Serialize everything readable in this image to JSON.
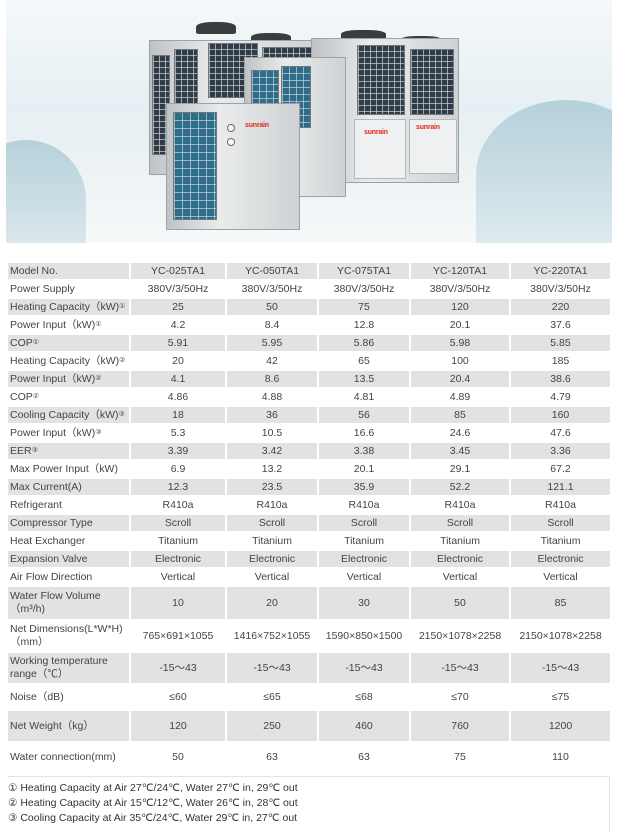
{
  "hero": {
    "brand_logo": "sunrain"
  },
  "table": {
    "header": [
      "Model No.",
      "YC-025TA1",
      "YC-050TA1",
      "YC-075TA1",
      "YC-120TA1",
      "YC-220TA1"
    ],
    "rows": [
      {
        "label": "Power Supply",
        "sup": "",
        "values": [
          "380V/3/50Hz",
          "380V/3/50Hz",
          "380V/3/50Hz",
          "380V/3/50Hz",
          "380V/3/50Hz"
        ]
      },
      {
        "label": "Heating Capacity（kW)",
        "sup": "①",
        "values": [
          "25",
          "50",
          "75",
          "120",
          "220"
        ]
      },
      {
        "label": "Power Input（kW)",
        "sup": "①",
        "values": [
          "4.2",
          "8.4",
          "12.8",
          "20.1",
          "37.6"
        ]
      },
      {
        "label": "COP",
        "sup": "①",
        "values": [
          "5.91",
          "5.95",
          "5.86",
          "5.98",
          "5.85"
        ]
      },
      {
        "label": "Heating Capacity（kW)",
        "sup": "②",
        "values": [
          "20",
          "42",
          "65",
          "100",
          "185"
        ]
      },
      {
        "label": "Power Input（kW)",
        "sup": "②",
        "values": [
          "4.1",
          "8.6",
          "13.5",
          "20.4",
          "38.6"
        ]
      },
      {
        "label": "COP",
        "sup": "②",
        "values": [
          "4.86",
          "4.88",
          "4.81",
          "4.89",
          "4.79"
        ]
      },
      {
        "label": "Cooling Capacity（kW)",
        "sup": "③",
        "values": [
          "18",
          "36",
          "56",
          "85",
          "160"
        ]
      },
      {
        "label": "Power Input（kW)",
        "sup": "③",
        "values": [
          "5.3",
          "10.5",
          "16.6",
          "24.6",
          "47.6"
        ]
      },
      {
        "label": "EER",
        "sup": "③",
        "values": [
          "3.39",
          "3.42",
          "3.38",
          "3.45",
          "3.36"
        ]
      },
      {
        "label": "Max Power Input（kW)",
        "sup": "",
        "values": [
          "6.9",
          "13.2",
          "20.1",
          "29.1",
          "67.2"
        ]
      },
      {
        "label": "Max Current(A)",
        "sup": "",
        "values": [
          "12.3",
          "23.5",
          "35.9",
          "52.2",
          "121.1"
        ]
      },
      {
        "label": "Refrigerant",
        "sup": "",
        "values": [
          "R410a",
          "R410a",
          "R410a",
          "R410a",
          "R410a"
        ]
      },
      {
        "label": "Compressor Type",
        "sup": "",
        "values": [
          "Scroll",
          "Scroll",
          "Scroll",
          "Scroll",
          "Scroll"
        ]
      },
      {
        "label": "Heat Exchanger",
        "sup": "",
        "values": [
          "Titanium",
          "Titanium",
          "Titanium",
          "Titanium",
          "Titanium"
        ]
      },
      {
        "label": "Expansion Valve",
        "sup": "",
        "values": [
          "Electronic",
          "Electronic",
          "Electronic",
          "Electronic",
          "Electronic"
        ]
      },
      {
        "label": "Air Flow Direction",
        "sup": "",
        "values": [
          "Vertical",
          "Vertical",
          "Vertical",
          "Vertical",
          "Vertical"
        ]
      },
      {
        "label": "Water Flow Volume（m³/h)",
        "sup": "",
        "values": [
          "10",
          "20",
          "30",
          "50",
          "85"
        ]
      },
      {
        "label": "Net Dimensions(L*W*H)（mm）",
        "sup": "",
        "values": [
          "765×691×1055",
          "1416×752×1055",
          "1590×850×1500",
          "2150×1078×2258",
          "2150×1078×2258"
        ]
      },
      {
        "label": "Working temperature range（℃）",
        "sup": "",
        "values": [
          "-15～43",
          "-15～43",
          "-15～43",
          "-15～43",
          "-15～43"
        ]
      },
      {
        "label": "Noise（dB)",
        "sup": "",
        "values": [
          "≤60",
          "≤65",
          "≤68",
          "≤70",
          "≤75"
        ]
      },
      {
        "label": "Net Weight（kg）",
        "sup": "",
        "values": [
          "120",
          "250",
          "460",
          "760",
          "1200"
        ]
      },
      {
        "label": "Water connection(mm)",
        "sup": "",
        "values": [
          "50",
          "63",
          "63",
          "75",
          "110"
        ]
      }
    ]
  },
  "notes": [
    "① Heating Capacity at Air 27℃/24℃, Water 27℃ in, 29℃ out",
    "② Heating Capacity at Air 15℃/12℃, Water 26℃ in, 28℃ out",
    "③ Cooling Capacity at Air 35℃/24℃, Water 29℃ in, 27℃ out"
  ]
}
